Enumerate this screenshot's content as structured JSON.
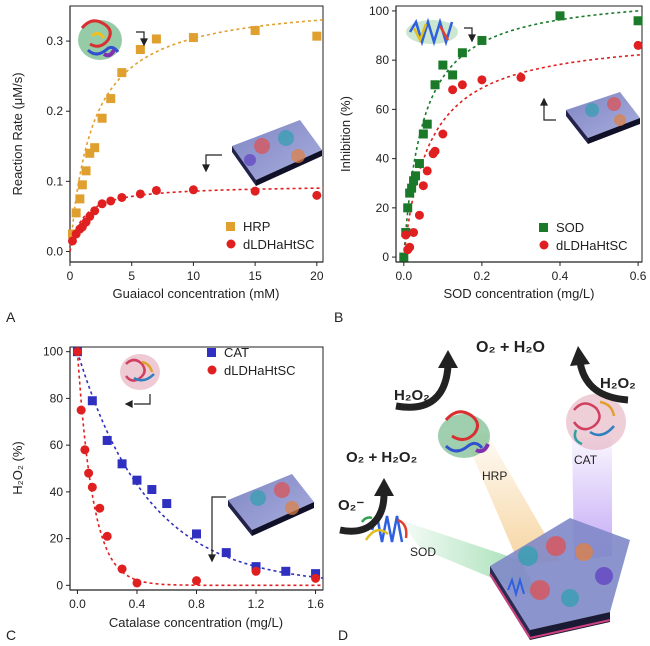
{
  "panel_labels": {
    "a": "A",
    "b": "B",
    "c": "C",
    "d": "D"
  },
  "colors": {
    "hrp": "#e0a030",
    "red": "#e02020",
    "sod": "#1a7a2a",
    "cat": "#3030c0"
  },
  "chart_data": [
    {
      "type": "scatter",
      "panel": "A",
      "xlabel": "Guaiacol concentration (mM)",
      "ylabel": "Reaction Rate (μM/s)",
      "xlim": [
        0,
        20.5
      ],
      "ylim": [
        -0.015,
        0.35
      ],
      "xticks": [
        0,
        5,
        10,
        15,
        20
      ],
      "yticks": [
        0.0,
        0.1,
        0.2,
        0.3
      ],
      "ytick_labels": [
        "0.0",
        "0.1",
        "0.2",
        "0.3"
      ],
      "legend_position": "bottom-right",
      "series": [
        {
          "name": "HRP",
          "marker": "square",
          "color": "#e0a030",
          "x": [
            0.2,
            0.5,
            0.8,
            1.0,
            1.3,
            1.6,
            2.0,
            2.6,
            3.3,
            4.2,
            5.7,
            7.0,
            10.0,
            15.0,
            20.0
          ],
          "y": [
            0.025,
            0.055,
            0.075,
            0.095,
            0.115,
            0.14,
            0.148,
            0.19,
            0.218,
            0.255,
            0.288,
            0.303,
            0.305,
            0.315,
            0.307
          ],
          "fit": {
            "vmax": 0.36,
            "km": 1.85
          }
        },
        {
          "name": "dLDHaHtSC",
          "marker": "circle",
          "color": "#e02020",
          "x": [
            0.2,
            0.5,
            0.8,
            1.0,
            1.3,
            1.6,
            2.0,
            2.6,
            3.3,
            4.2,
            5.7,
            7.0,
            10.0,
            15.0,
            20.0
          ],
          "y": [
            0.015,
            0.025,
            0.032,
            0.035,
            0.042,
            0.05,
            0.058,
            0.068,
            0.072,
            0.077,
            0.082,
            0.087,
            0.088,
            0.086,
            0.08
          ],
          "fit": {
            "vmax": 0.095,
            "km": 1.05
          }
        }
      ]
    },
    {
      "type": "scatter",
      "panel": "B",
      "xlabel": "SOD concentration (mg/L)",
      "ylabel": "Inhibition (%)",
      "xlim": [
        -0.02,
        0.61
      ],
      "ylim": [
        -2,
        102
      ],
      "xticks": [
        0.0,
        0.2,
        0.4,
        0.6
      ],
      "xtick_labels": [
        "0.0",
        "0.2",
        "0.4",
        "0.6"
      ],
      "yticks": [
        0,
        20,
        40,
        60,
        80,
        100
      ],
      "legend_position": "bottom-right",
      "series": [
        {
          "name": "SOD",
          "marker": "square",
          "color": "#1a7a2a",
          "x": [
            0.0,
            0.005,
            0.01,
            0.015,
            0.02,
            0.025,
            0.03,
            0.04,
            0.05,
            0.06,
            0.08,
            0.1,
            0.125,
            0.15,
            0.2,
            0.4,
            0.6
          ],
          "y": [
            0,
            10,
            20,
            26,
            28,
            31,
            33,
            38,
            50,
            54,
            70,
            78,
            74,
            83,
            88,
            98,
            96
          ],
          "fit": {
            "vmax": 108,
            "km": 0.048
          }
        },
        {
          "name": "dLDHaHtSC",
          "marker": "circle",
          "color": "#e02020",
          "x": [
            0.005,
            0.01,
            0.015,
            0.025,
            0.04,
            0.05,
            0.06,
            0.075,
            0.08,
            0.1,
            0.125,
            0.15,
            0.2,
            0.3,
            0.6
          ],
          "y": [
            9,
            3,
            4,
            10,
            17,
            29,
            35,
            42,
            43,
            50,
            68,
            70,
            72,
            73,
            86
          ],
          "fit": {
            "vmax": 91,
            "km": 0.065
          }
        }
      ]
    },
    {
      "type": "scatter",
      "panel": "C",
      "xlabel": "Catalase concentration (mg/L)",
      "ylabel": "H₂O₂ (%)",
      "xlim": [
        -0.05,
        1.65
      ],
      "ylim": [
        -2,
        102
      ],
      "xticks": [
        0.0,
        0.4,
        0.8,
        1.2,
        1.6
      ],
      "xtick_labels": [
        "0.0",
        "0.4",
        "0.8",
        "1.2",
        "1.6"
      ],
      "yticks": [
        0,
        20,
        40,
        60,
        80,
        100
      ],
      "legend_position": "top-right",
      "series": [
        {
          "name": "CAT",
          "marker": "square",
          "color": "#3030c0",
          "x": [
            0.0,
            0.1,
            0.2,
            0.3,
            0.4,
            0.5,
            0.6,
            0.8,
            1.0,
            1.2,
            1.4,
            1.6
          ],
          "y": [
            100,
            79,
            62,
            52,
            45,
            41,
            35,
            22,
            14,
            8,
            6,
            5
          ],
          "fit": {
            "k": 2.1
          }
        },
        {
          "name": "dLDHaHtSC",
          "marker": "circle",
          "color": "#e02020",
          "x": [
            0.0,
            0.025,
            0.05,
            0.075,
            0.1,
            0.15,
            0.2,
            0.3,
            0.4,
            0.8,
            1.2,
            1.6
          ],
          "y": [
            100,
            75,
            58,
            48,
            42,
            33,
            21,
            7,
            1,
            2,
            6,
            3
          ],
          "fit": {
            "k": 9.5
          }
        }
      ]
    }
  ],
  "diagram": {
    "o2_h2o": "O₂ + H₂O",
    "h2o2_left": "H₂O₂",
    "h2o2_right": "H₂O₂",
    "o2_h2o2": "O₂ + H₂O₂",
    "o2_minus": "O₂⁻",
    "hrp": "HRP",
    "cat": "CAT",
    "sod": "SOD"
  }
}
